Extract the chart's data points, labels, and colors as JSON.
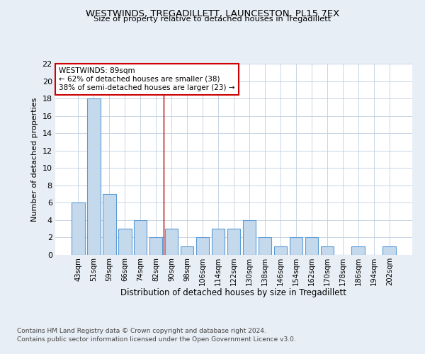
{
  "title1": "WESTWINDS, TREGADILLETT, LAUNCESTON, PL15 7EX",
  "title2": "Size of property relative to detached houses in Tregadillett",
  "xlabel": "Distribution of detached houses by size in Tregadillett",
  "ylabel": "Number of detached properties",
  "categories": [
    "43sqm",
    "51sqm",
    "59sqm",
    "66sqm",
    "74sqm",
    "82sqm",
    "90sqm",
    "98sqm",
    "106sqm",
    "114sqm",
    "122sqm",
    "130sqm",
    "138sqm",
    "146sqm",
    "154sqm",
    "162sqm",
    "170sqm",
    "178sqm",
    "186sqm",
    "194sqm",
    "202sqm"
  ],
  "values": [
    6,
    18,
    7,
    3,
    4,
    2,
    3,
    1,
    2,
    3,
    3,
    4,
    2,
    1,
    2,
    2,
    1,
    0,
    1,
    0,
    1
  ],
  "bar_color": "#c5d9ed",
  "bar_edge_color": "#5b9bd5",
  "annotation_text": "WESTWINDS: 89sqm\n← 62% of detached houses are smaller (38)\n38% of semi-detached houses are larger (23) →",
  "annotation_box_color": "white",
  "annotation_box_edge": "#cc0000",
  "vline_color": "#aa0000",
  "ylim": [
    0,
    22
  ],
  "yticks": [
    0,
    2,
    4,
    6,
    8,
    10,
    12,
    14,
    16,
    18,
    20,
    22
  ],
  "footer1": "Contains HM Land Registry data © Crown copyright and database right 2024.",
  "footer2": "Contains public sector information licensed under the Open Government Licence v3.0.",
  "bg_color": "#e8eef5",
  "plot_bg_color": "#ffffff",
  "grid_color": "#c0cfe0"
}
